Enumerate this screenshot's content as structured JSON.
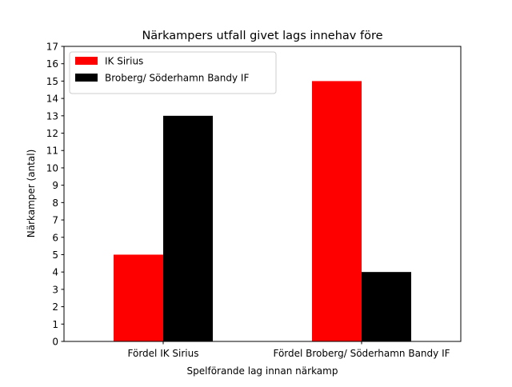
{
  "chart_data": {
    "type": "bar",
    "title": "Närkampers utfall givet lags innehav före",
    "xlabel": "Spelförande lag innan närkamp",
    "ylabel": "Närkamper (antal)",
    "categories": [
      "Fördel IK Sirius",
      "Fördel Broberg/ Söderhamn Bandy IF"
    ],
    "series": [
      {
        "name": "IK Sirius",
        "color": "#ff0000",
        "values": [
          5,
          15
        ]
      },
      {
        "name": "Broberg/ Söderhamn Bandy IF",
        "color": "#000000",
        "values": [
          13,
          4
        ]
      }
    ],
    "ylim": [
      0,
      17
    ],
    "yticks": [
      0,
      1,
      2,
      3,
      4,
      5,
      6,
      7,
      8,
      9,
      10,
      11,
      12,
      13,
      14,
      15,
      16,
      17
    ],
    "grid": false,
    "legend_position": "top-left"
  }
}
